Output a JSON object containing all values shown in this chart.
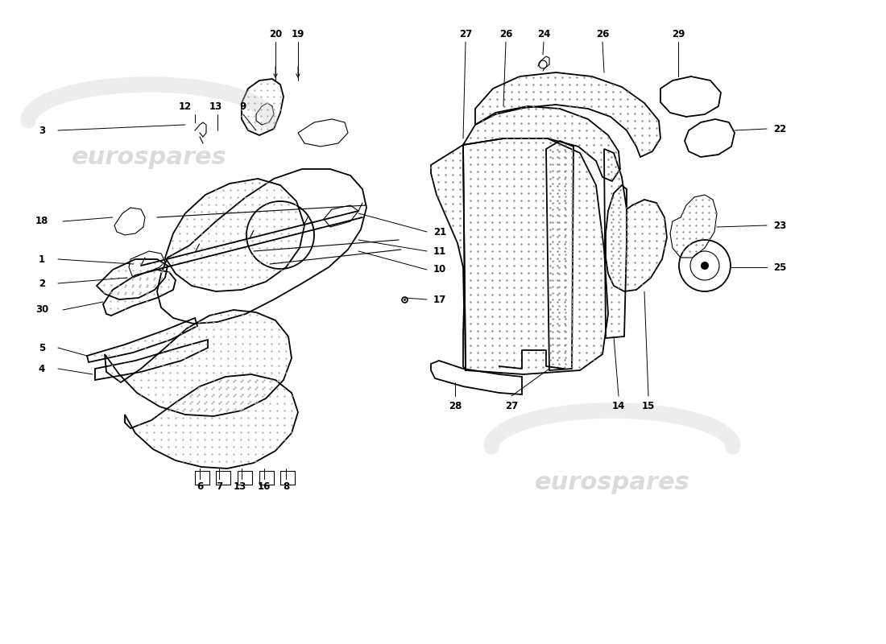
{
  "background_color": "#ffffff",
  "line_color": "#000000",
  "watermark_color_top": "#cccccc",
  "watermark_color_bot": "#d8d8d8",
  "lw_main": 1.3,
  "lw_thin": 0.8,
  "lw_leader": 0.7,
  "label_fontsize": 8.5
}
